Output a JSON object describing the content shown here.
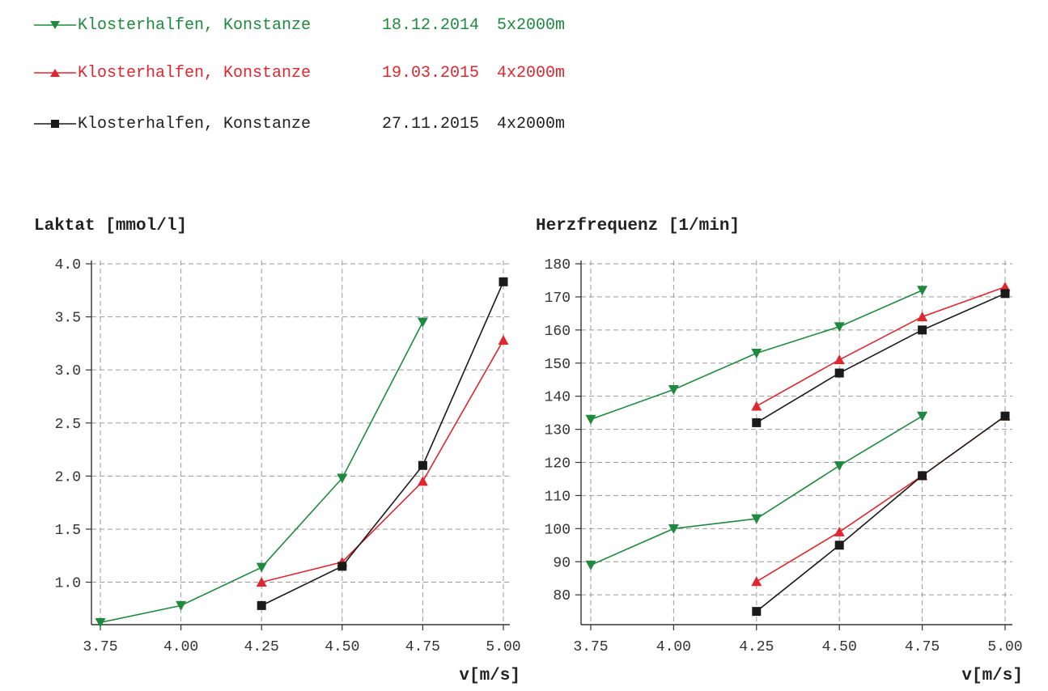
{
  "legend": [
    {
      "name": "Klosterhalfen, Konstanze",
      "date": "18.12.2014",
      "test": "5x2000m",
      "color": "#1f8a3f",
      "marker": "triangle-down"
    },
    {
      "name": "Klosterhalfen, Konstanze",
      "date": "19.03.2015",
      "test": "4x2000m",
      "color": "#e0262f",
      "marker": "triangle-up"
    },
    {
      "name": "Klosterhalfen, Konstanze",
      "date": "27.11.2015",
      "test": "4x2000m",
      "color": "#1a1a1a",
      "marker": "square"
    }
  ],
  "chart_data": [
    {
      "type": "line",
      "title": "Laktat [mmol/l]",
      "xlabel": "v[m/s]",
      "ylabel": "",
      "xlim": [
        3.75,
        5.0
      ],
      "ylim": [
        0.6,
        4.0
      ],
      "x_ticks": [
        "3.75",
        "4.00",
        "4.25",
        "4.50",
        "4.75",
        "5.00"
      ],
      "y_ticks": [
        "1.0",
        "1.5",
        "2.0",
        "2.5",
        "3.0",
        "3.5",
        "4.0"
      ],
      "grid": true,
      "series": [
        {
          "color": "#1f8a3f",
          "marker": "triangle-down",
          "x": [
            3.75,
            4.0,
            4.25,
            4.5,
            4.75
          ],
          "y": [
            0.62,
            0.78,
            1.14,
            1.98,
            3.45
          ]
        },
        {
          "color": "#e0262f",
          "marker": "triangle-up",
          "x": [
            4.25,
            4.5,
            4.75,
            5.0
          ],
          "y": [
            1.0,
            1.19,
            1.95,
            3.28
          ]
        },
        {
          "color": "#1a1a1a",
          "marker": "square",
          "x": [
            4.25,
            4.5,
            4.75,
            5.0
          ],
          "y": [
            0.78,
            1.15,
            2.1,
            3.83
          ]
        }
      ]
    },
    {
      "type": "line",
      "title": "Herzfrequenz [1/min]",
      "xlabel": "v[m/s]",
      "ylabel": "",
      "xlim": [
        3.75,
        5.0
      ],
      "ylim": [
        71,
        180
      ],
      "x_ticks": [
        "3.75",
        "4.00",
        "4.25",
        "4.50",
        "4.75",
        "5.00"
      ],
      "y_ticks": [
        "80",
        "90",
        "100",
        "110",
        "120",
        "130",
        "140",
        "150",
        "160",
        "170",
        "180"
      ],
      "grid": true,
      "series": [
        {
          "color": "#1f8a3f",
          "marker": "triangle-down",
          "x": [
            3.75,
            4.0,
            4.25,
            4.5,
            4.75
          ],
          "y": [
            133,
            142,
            153,
            161,
            172
          ]
        },
        {
          "color": "#e0262f",
          "marker": "triangle-up",
          "x": [
            4.25,
            4.5,
            4.75,
            5.0
          ],
          "y": [
            137,
            151,
            164,
            173
          ]
        },
        {
          "color": "#1a1a1a",
          "marker": "square",
          "x": [
            4.25,
            4.5,
            4.75,
            5.0
          ],
          "y": [
            132,
            147,
            160,
            171
          ]
        },
        {
          "color": "#1f8a3f",
          "marker": "triangle-down",
          "x": [
            3.75,
            4.0,
            4.25,
            4.5,
            4.75
          ],
          "y": [
            89,
            100,
            103,
            119,
            134
          ]
        },
        {
          "color": "#e0262f",
          "marker": "triangle-up",
          "x": [
            4.25,
            4.5,
            4.75,
            5.0
          ],
          "y": [
            84,
            99,
            116,
            134
          ]
        },
        {
          "color": "#1a1a1a",
          "marker": "square",
          "x": [
            4.25,
            4.5,
            4.75,
            5.0
          ],
          "y": [
            75,
            95,
            116,
            134
          ]
        }
      ]
    }
  ]
}
